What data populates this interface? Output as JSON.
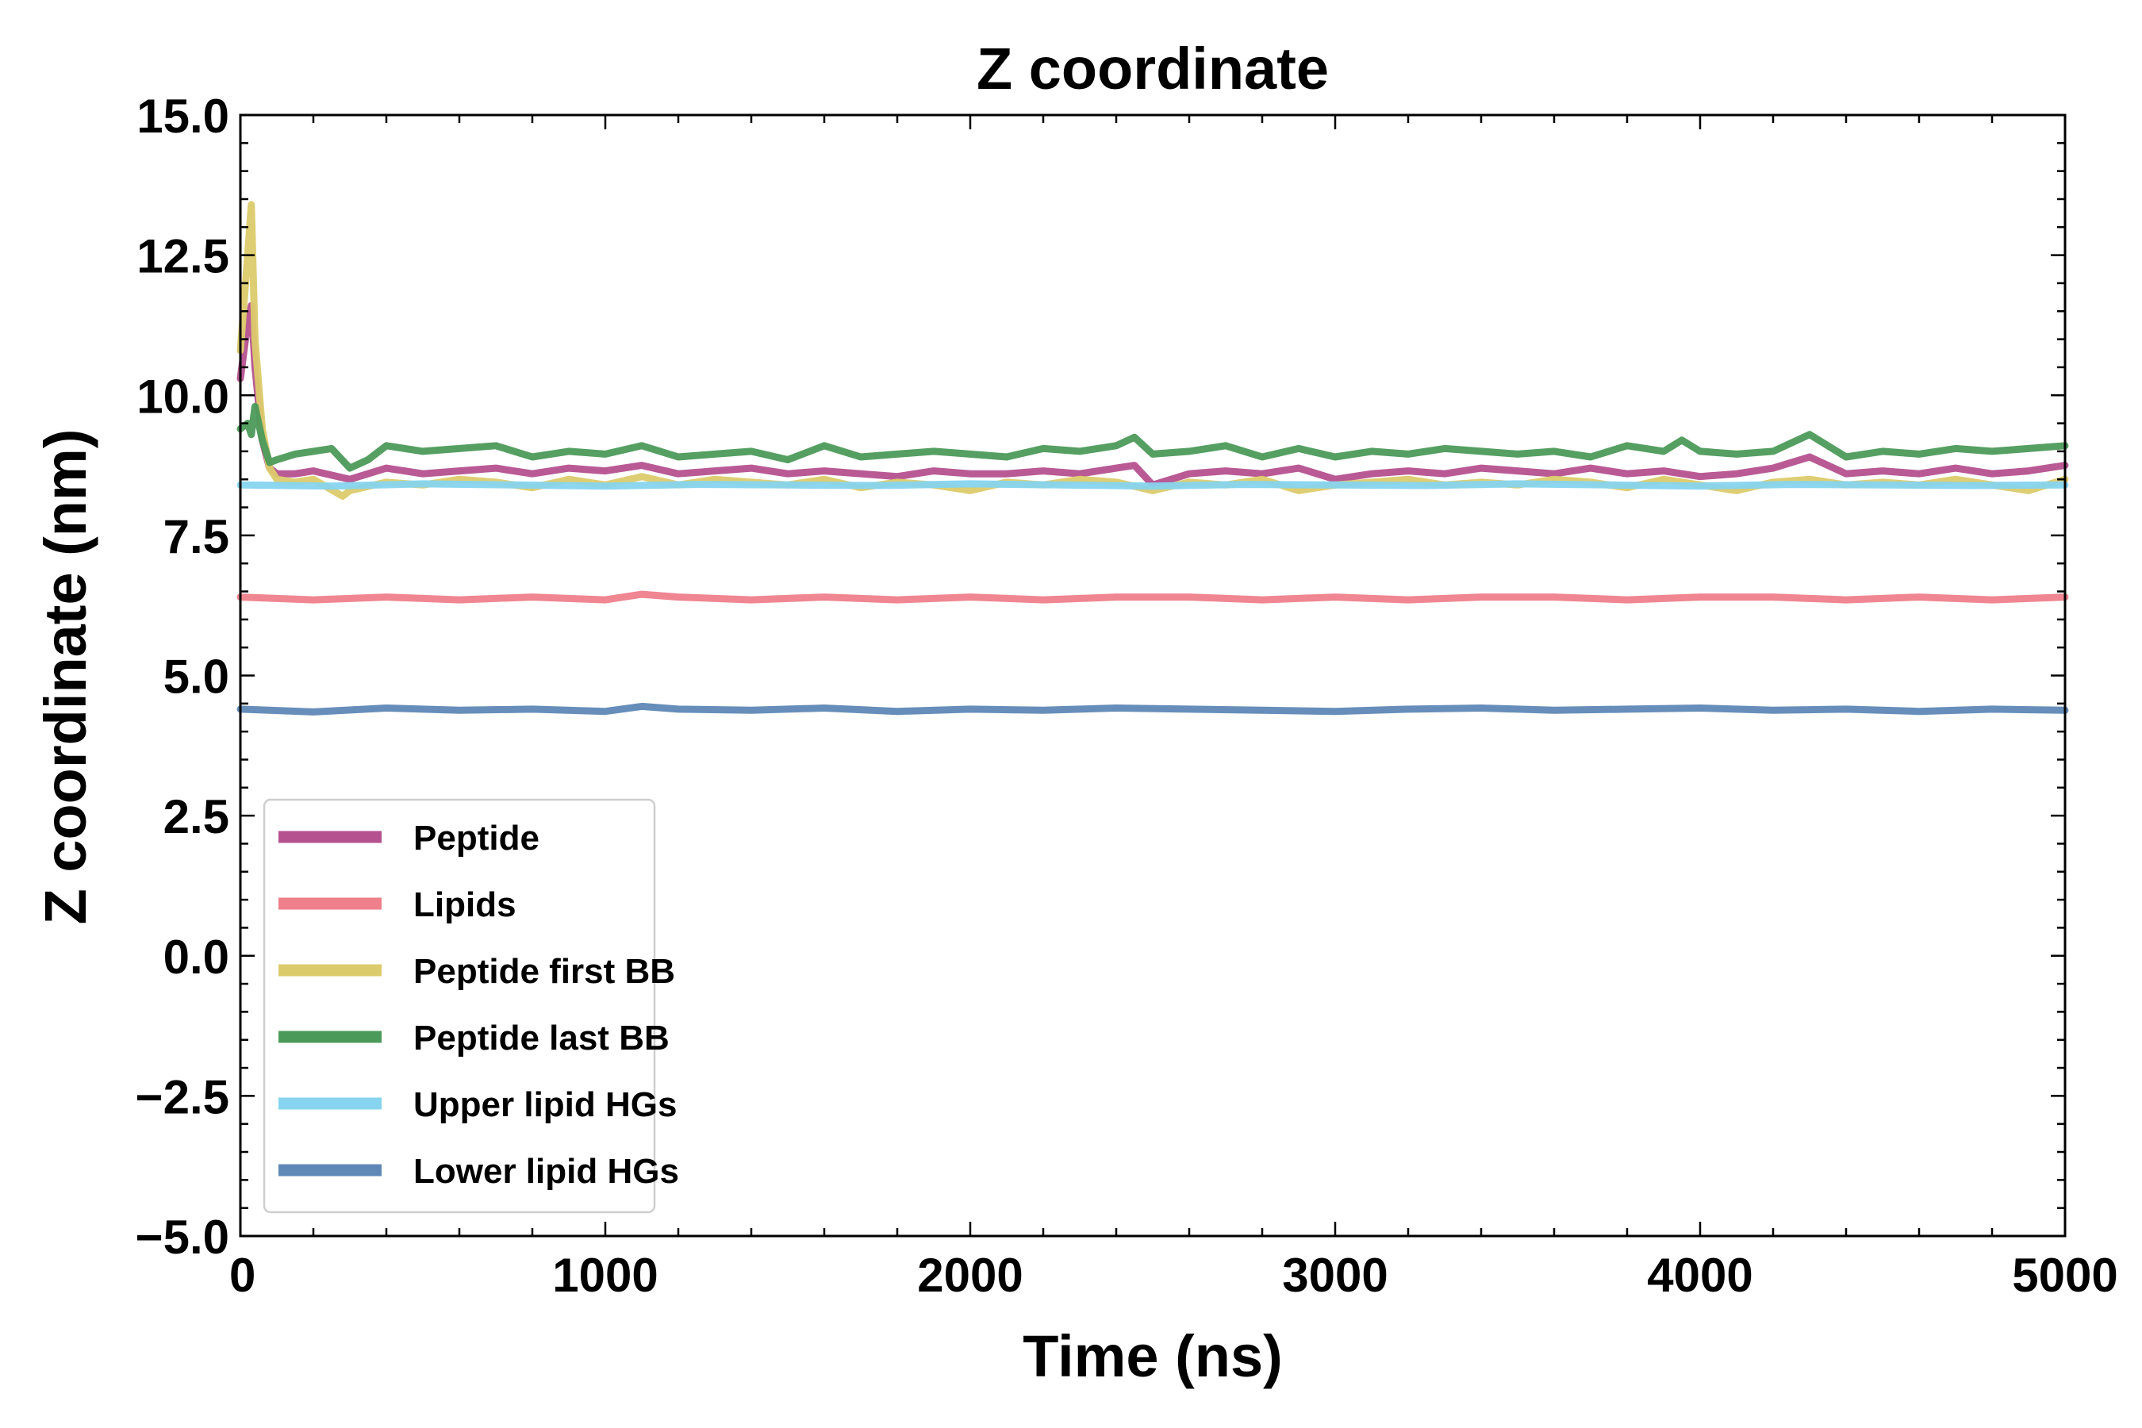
{
  "chart_data": {
    "type": "line",
    "title": "Z coordinate",
    "xlabel": "Time (ns)",
    "ylabel": "Z coordinate (nm)",
    "xlim": [
      0,
      5000
    ],
    "ylim": [
      -5,
      15
    ],
    "x_ticks": [
      0,
      1000,
      2000,
      3000,
      4000,
      5000
    ],
    "x_tick_labels": [
      "0",
      "1000",
      "2000",
      "3000",
      "4000",
      "5000"
    ],
    "y_ticks": [
      -5,
      -2.5,
      0,
      2.5,
      5,
      7.5,
      10,
      12.5,
      15
    ],
    "y_tick_labels": [
      "−5.0",
      "−2.5",
      "0.0",
      "2.5",
      "5.0",
      "7.5",
      "10.0",
      "12.5",
      "15.0"
    ],
    "grid": false,
    "legend_position": "lower-left",
    "series": [
      {
        "name": "Peptide",
        "color": "#b5518f",
        "x": [
          0,
          20,
          30,
          40,
          60,
          80,
          100,
          150,
          200,
          300,
          400,
          500,
          600,
          700,
          800,
          900,
          1000,
          1100,
          1200,
          1300,
          1400,
          1500,
          1600,
          1700,
          1800,
          1900,
          2000,
          2100,
          2200,
          2300,
          2400,
          2450,
          2500,
          2600,
          2700,
          2800,
          2900,
          3000,
          3100,
          3200,
          3300,
          3400,
          3500,
          3600,
          3700,
          3800,
          3900,
          4000,
          4100,
          4200,
          4300,
          4400,
          4500,
          4600,
          4700,
          4800,
          4900,
          5000
        ],
        "values": [
          10.3,
          11.3,
          11.6,
          10.5,
          9.2,
          8.7,
          8.6,
          8.6,
          8.65,
          8.5,
          8.7,
          8.6,
          8.65,
          8.7,
          8.6,
          8.7,
          8.65,
          8.75,
          8.6,
          8.65,
          8.7,
          8.6,
          8.65,
          8.6,
          8.55,
          8.65,
          8.6,
          8.6,
          8.65,
          8.6,
          8.7,
          8.75,
          8.4,
          8.6,
          8.65,
          8.6,
          8.7,
          8.5,
          8.6,
          8.65,
          8.6,
          8.7,
          8.65,
          8.6,
          8.7,
          8.6,
          8.65,
          8.55,
          8.6,
          8.7,
          8.9,
          8.6,
          8.65,
          8.6,
          8.7,
          8.6,
          8.65,
          8.75
        ]
      },
      {
        "name": "Lipids",
        "color": "#ee7f8b",
        "x": [
          0,
          200,
          400,
          600,
          800,
          1000,
          1100,
          1200,
          1400,
          1600,
          1800,
          2000,
          2200,
          2400,
          2600,
          2800,
          3000,
          3200,
          3400,
          3600,
          3800,
          4000,
          4200,
          4400,
          4600,
          4800,
          5000
        ],
        "values": [
          6.4,
          6.35,
          6.4,
          6.35,
          6.4,
          6.35,
          6.45,
          6.4,
          6.35,
          6.4,
          6.35,
          6.4,
          6.35,
          6.4,
          6.4,
          6.35,
          6.4,
          6.35,
          6.4,
          6.4,
          6.35,
          6.4,
          6.4,
          6.35,
          6.4,
          6.35,
          6.4
        ]
      },
      {
        "name": "Peptide first BB",
        "color": "#dccb6b",
        "x": [
          0,
          20,
          30,
          40,
          60,
          80,
          100,
          150,
          200,
          280,
          300,
          400,
          500,
          600,
          700,
          800,
          900,
          1000,
          1100,
          1200,
          1300,
          1400,
          1500,
          1600,
          1700,
          1800,
          1900,
          2000,
          2100,
          2200,
          2300,
          2400,
          2500,
          2600,
          2700,
          2800,
          2900,
          3000,
          3100,
          3200,
          3300,
          3400,
          3500,
          3600,
          3700,
          3800,
          3900,
          4000,
          4100,
          4200,
          4300,
          4400,
          4500,
          4600,
          4700,
          4800,
          4900,
          5000
        ],
        "values": [
          10.8,
          12.5,
          13.4,
          11.0,
          9.4,
          8.7,
          8.5,
          8.45,
          8.5,
          8.2,
          8.3,
          8.45,
          8.4,
          8.5,
          8.45,
          8.35,
          8.5,
          8.4,
          8.55,
          8.4,
          8.5,
          8.45,
          8.4,
          8.5,
          8.35,
          8.45,
          8.4,
          8.3,
          8.45,
          8.4,
          8.5,
          8.45,
          8.3,
          8.45,
          8.4,
          8.5,
          8.3,
          8.4,
          8.45,
          8.5,
          8.4,
          8.45,
          8.4,
          8.5,
          8.45,
          8.35,
          8.5,
          8.4,
          8.3,
          8.45,
          8.5,
          8.4,
          8.45,
          8.4,
          8.5,
          8.4,
          8.3,
          8.5
        ]
      },
      {
        "name": "Peptide last BB",
        "color": "#4c9a5a",
        "x": [
          0,
          20,
          30,
          40,
          60,
          80,
          100,
          150,
          200,
          250,
          300,
          350,
          400,
          500,
          600,
          700,
          800,
          900,
          1000,
          1100,
          1200,
          1300,
          1400,
          1500,
          1600,
          1700,
          1800,
          1900,
          2000,
          2100,
          2200,
          2300,
          2400,
          2450,
          2500,
          2600,
          2700,
          2800,
          2900,
          3000,
          3100,
          3200,
          3300,
          3400,
          3500,
          3600,
          3700,
          3800,
          3900,
          3950,
          4000,
          4100,
          4200,
          4300,
          4400,
          4500,
          4600,
          4700,
          4800,
          4900,
          5000
        ],
        "values": [
          9.4,
          9.5,
          9.3,
          9.8,
          9.2,
          8.8,
          8.85,
          8.95,
          9.0,
          9.05,
          8.7,
          8.85,
          9.1,
          9.0,
          9.05,
          9.1,
          8.9,
          9.0,
          8.95,
          9.1,
          8.9,
          8.95,
          9.0,
          8.85,
          9.1,
          8.9,
          8.95,
          9.0,
          8.95,
          8.9,
          9.05,
          9.0,
          9.1,
          9.25,
          8.95,
          9.0,
          9.1,
          8.9,
          9.05,
          8.9,
          9.0,
          8.95,
          9.05,
          9.0,
          8.95,
          9.0,
          8.9,
          9.1,
          9.0,
          9.2,
          9.0,
          8.95,
          9.0,
          9.3,
          8.9,
          9.0,
          8.95,
          9.05,
          9.0,
          9.05,
          9.1
        ]
      },
      {
        "name": "Upper lipid HGs",
        "color": "#86d4ee",
        "x": [
          0,
          250,
          500,
          750,
          1000,
          1250,
          1500,
          1750,
          2000,
          2250,
          2500,
          2750,
          3000,
          3250,
          3500,
          3750,
          4000,
          4250,
          4500,
          4750,
          5000
        ],
        "values": [
          8.4,
          8.38,
          8.42,
          8.4,
          8.38,
          8.41,
          8.4,
          8.39,
          8.42,
          8.4,
          8.38,
          8.41,
          8.4,
          8.39,
          8.42,
          8.4,
          8.38,
          8.41,
          8.4,
          8.39,
          8.4
        ]
      },
      {
        "name": "Lower lipid HGs",
        "color": "#5f88b6",
        "x": [
          0,
          200,
          400,
          600,
          800,
          1000,
          1100,
          1200,
          1400,
          1600,
          1800,
          2000,
          2200,
          2400,
          2600,
          2800,
          3000,
          3200,
          3400,
          3600,
          3800,
          4000,
          4200,
          4400,
          4600,
          4800,
          5000
        ],
        "values": [
          4.4,
          4.35,
          4.42,
          4.38,
          4.4,
          4.36,
          4.45,
          4.4,
          4.38,
          4.42,
          4.36,
          4.4,
          4.38,
          4.42,
          4.4,
          4.38,
          4.36,
          4.4,
          4.42,
          4.38,
          4.4,
          4.42,
          4.38,
          4.4,
          4.36,
          4.4,
          4.38
        ]
      }
    ]
  }
}
